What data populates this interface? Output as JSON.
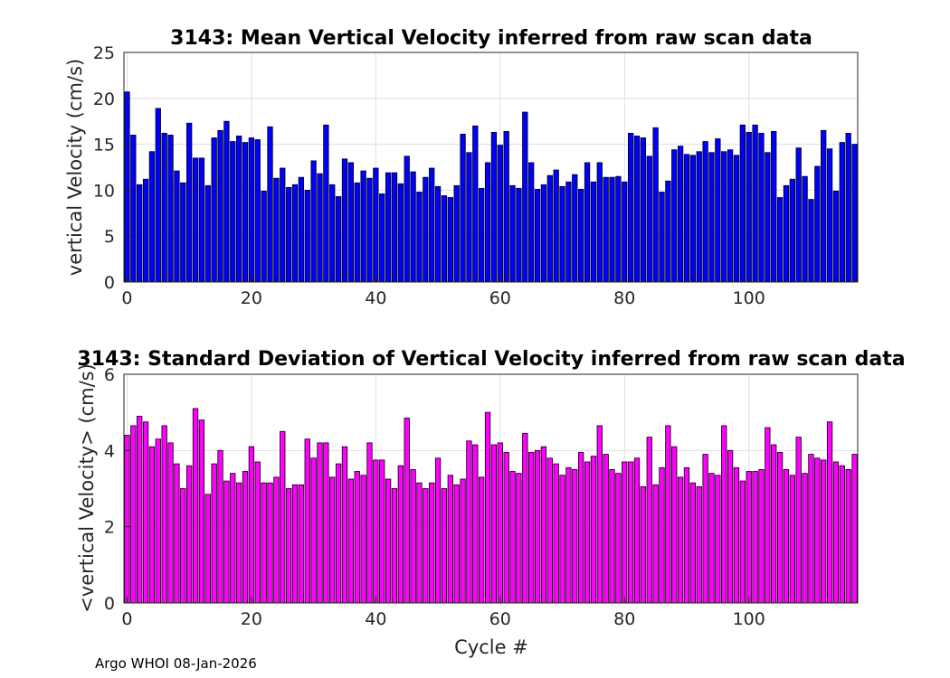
{
  "chart_data": [
    {
      "type": "bar",
      "title": "3143: Mean Vertical Velocity inferred from raw scan data",
      "xlabel": "",
      "ylabel": "vertical Velocity (cm/s)",
      "xlim": [
        -0.5,
        117.5
      ],
      "ylim": [
        0,
        25
      ],
      "xticks": [
        0,
        20,
        40,
        60,
        80,
        100
      ],
      "yticks": [
        0,
        5,
        10,
        15,
        20,
        25
      ],
      "grid": true,
      "bar_color": "#0000ff",
      "x_start": 0,
      "values": [
        20.7,
        16.0,
        10.6,
        11.2,
        14.2,
        18.9,
        16.2,
        16.0,
        12.1,
        10.8,
        17.3,
        13.5,
        13.5,
        10.5,
        15.7,
        16.5,
        17.5,
        15.3,
        15.9,
        15.2,
        15.7,
        15.5,
        9.9,
        16.9,
        11.3,
        12.4,
        10.3,
        10.6,
        11.4,
        10.0,
        13.2,
        11.8,
        17.1,
        10.6,
        9.3,
        13.4,
        13.0,
        10.8,
        12.1,
        11.3,
        12.4,
        9.6,
        11.9,
        11.9,
        10.7,
        13.7,
        12.0,
        9.8,
        11.4,
        12.4,
        10.4,
        9.4,
        9.2,
        10.5,
        16.1,
        14.1,
        17.0,
        10.2,
        13.0,
        16.3,
        14.9,
        16.4,
        10.5,
        10.2,
        18.5,
        13.0,
        10.1,
        10.6,
        11.6,
        12.2,
        10.4,
        10.9,
        11.7,
        10.1,
        13.0,
        10.9,
        13.0,
        11.4,
        11.4,
        11.5,
        10.9,
        16.2,
        15.9,
        15.7,
        13.7,
        16.8,
        9.8,
        11.0,
        14.4,
        14.8,
        13.9,
        13.8,
        14.2,
        15.3,
        14.1,
        15.6,
        14.2,
        14.4,
        13.8,
        17.1,
        16.3,
        17.1,
        16.2,
        14.1,
        16.4,
        9.2,
        10.5,
        11.2,
        14.6,
        11.5,
        9.0,
        12.6,
        16.5,
        14.5,
        9.9,
        15.2,
        16.2,
        15.0
      ]
    },
    {
      "type": "bar",
      "title": "3143: Standard Deviation of Vertical Velocity inferred from raw scan data",
      "xlabel": "Cycle #",
      "ylabel": "<vertical Velocity> (cm/s)",
      "xlim": [
        -0.5,
        117.5
      ],
      "ylim": [
        0,
        6
      ],
      "xticks": [
        0,
        20,
        40,
        60,
        80,
        100
      ],
      "yticks": [
        0,
        2,
        4,
        6
      ],
      "grid": true,
      "bar_color": "#ff00ff",
      "x_start": 0,
      "values": [
        4.4,
        4.65,
        4.9,
        4.75,
        4.1,
        4.3,
        4.65,
        4.2,
        3.65,
        3.0,
        3.6,
        5.1,
        4.8,
        2.85,
        3.65,
        4.0,
        3.2,
        3.4,
        3.15,
        3.45,
        4.1,
        3.7,
        3.15,
        3.15,
        3.3,
        4.5,
        3.0,
        3.1,
        3.1,
        4.3,
        3.8,
        4.2,
        4.2,
        3.3,
        3.65,
        4.1,
        3.25,
        3.45,
        3.35,
        4.2,
        3.75,
        3.75,
        3.25,
        3.0,
        3.6,
        4.85,
        3.5,
        3.15,
        3.0,
        3.15,
        3.8,
        3.0,
        3.35,
        3.1,
        3.25,
        4.25,
        4.15,
        3.3,
        5.0,
        4.15,
        4.2,
        3.95,
        3.45,
        3.4,
        4.45,
        3.95,
        4.0,
        4.1,
        3.8,
        3.65,
        3.35,
        3.55,
        3.5,
        3.95,
        3.7,
        3.85,
        4.65,
        3.9,
        3.5,
        3.4,
        3.7,
        3.7,
        3.8,
        3.05,
        4.35,
        3.1,
        3.55,
        4.65,
        4.1,
        3.3,
        3.55,
        3.15,
        3.05,
        3.9,
        3.4,
        3.35,
        4.65,
        4.0,
        3.55,
        3.2,
        3.45,
        3.45,
        3.5,
        4.6,
        4.15,
        3.95,
        3.5,
        3.35,
        4.35,
        3.4,
        3.9,
        3.8,
        3.75,
        4.75,
        3.7,
        3.6,
        3.5,
        3.9
      ]
    }
  ],
  "footer": "Argo WHOI 08-Jan-2026"
}
